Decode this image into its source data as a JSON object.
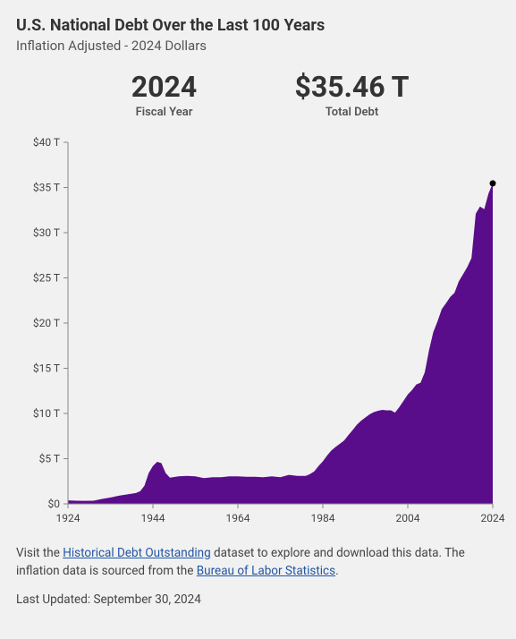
{
  "title": "U.S. National Debt Over the Last 100 Years",
  "subtitle": "Inflation Adjusted - 2024 Dollars",
  "stats": {
    "year_value": "2024",
    "year_label": "Fiscal Year",
    "debt_value": "$35.46 T",
    "debt_label": "Total Debt"
  },
  "chart": {
    "type": "area",
    "x_domain": [
      1924,
      2024
    ],
    "y_domain": [
      0,
      40
    ],
    "x_ticks": [
      1924,
      1944,
      1964,
      1984,
      2004,
      2024
    ],
    "y_ticks": [
      0,
      5,
      10,
      15,
      20,
      25,
      30,
      35,
      40
    ],
    "y_tick_labels": [
      "$0",
      "$5 T",
      "$10 T",
      "$15 T",
      "$20 T",
      "$25 T",
      "$30 T",
      "$35 T",
      "$40 T"
    ],
    "fill_color": "#5a0d8a",
    "axis_color": "#888888",
    "background_color": "#f2f1f1",
    "marker_color": "#000000",
    "marker_point": [
      2024,
      35.46
    ],
    "series": [
      [
        1924,
        0.38
      ],
      [
        1926,
        0.35
      ],
      [
        1928,
        0.33
      ],
      [
        1930,
        0.35
      ],
      [
        1932,
        0.55
      ],
      [
        1934,
        0.7
      ],
      [
        1936,
        0.9
      ],
      [
        1938,
        1.05
      ],
      [
        1940,
        1.2
      ],
      [
        1941,
        1.4
      ],
      [
        1942,
        2.0
      ],
      [
        1943,
        3.4
      ],
      [
        1944,
        4.2
      ],
      [
        1945,
        4.65
      ],
      [
        1946,
        4.5
      ],
      [
        1947,
        3.4
      ],
      [
        1948,
        2.9
      ],
      [
        1950,
        3.05
      ],
      [
        1952,
        3.1
      ],
      [
        1954,
        3.05
      ],
      [
        1956,
        2.85
      ],
      [
        1958,
        2.95
      ],
      [
        1960,
        2.95
      ],
      [
        1962,
        3.05
      ],
      [
        1964,
        3.05
      ],
      [
        1966,
        3.0
      ],
      [
        1968,
        3.0
      ],
      [
        1970,
        2.95
      ],
      [
        1972,
        3.05
      ],
      [
        1974,
        2.95
      ],
      [
        1976,
        3.2
      ],
      [
        1978,
        3.1
      ],
      [
        1980,
        3.1
      ],
      [
        1981,
        3.3
      ],
      [
        1982,
        3.6
      ],
      [
        1983,
        4.2
      ],
      [
        1984,
        4.7
      ],
      [
        1985,
        5.35
      ],
      [
        1986,
        5.9
      ],
      [
        1987,
        6.3
      ],
      [
        1988,
        6.65
      ],
      [
        1989,
        7.0
      ],
      [
        1990,
        7.6
      ],
      [
        1991,
        8.15
      ],
      [
        1992,
        8.75
      ],
      [
        1993,
        9.2
      ],
      [
        1994,
        9.55
      ],
      [
        1995,
        9.9
      ],
      [
        1996,
        10.15
      ],
      [
        1997,
        10.3
      ],
      [
        1998,
        10.4
      ],
      [
        1999,
        10.35
      ],
      [
        2000,
        10.35
      ],
      [
        2001,
        10.1
      ],
      [
        2002,
        10.7
      ],
      [
        2003,
        11.4
      ],
      [
        2004,
        12.1
      ],
      [
        2005,
        12.6
      ],
      [
        2006,
        13.2
      ],
      [
        2007,
        13.4
      ],
      [
        2008,
        14.55
      ],
      [
        2009,
        17.0
      ],
      [
        2010,
        19.0
      ],
      [
        2011,
        20.2
      ],
      [
        2012,
        21.55
      ],
      [
        2013,
        22.2
      ],
      [
        2014,
        22.9
      ],
      [
        2015,
        23.35
      ],
      [
        2016,
        24.6
      ],
      [
        2017,
        25.4
      ],
      [
        2018,
        26.2
      ],
      [
        2019,
        27.2
      ],
      [
        2020,
        32.1
      ],
      [
        2021,
        32.9
      ],
      [
        2022,
        32.6
      ],
      [
        2023,
        34.35
      ],
      [
        2024,
        35.46
      ]
    ]
  },
  "footer": {
    "prefix": "Visit the ",
    "link1_text": "Historical Debt Outstanding",
    "mid": " dataset to explore and download this data. The inflation data is sourced from the ",
    "link2_text": "Bureau of Labor Statistics",
    "suffix": "."
  },
  "updated": "Last Updated: September 30, 2024"
}
